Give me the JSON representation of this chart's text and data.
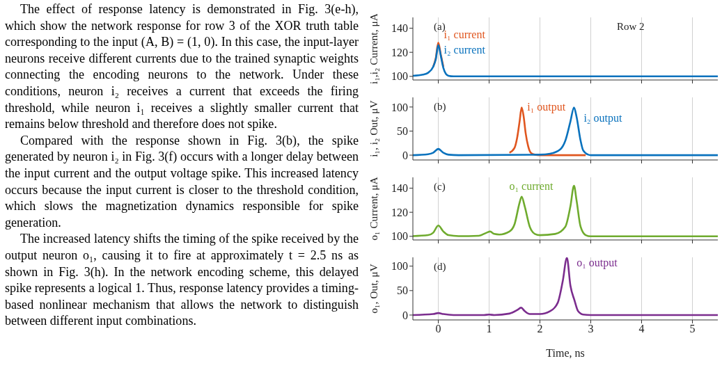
{
  "chart_data": [
    {
      "type": "other",
      "annotations": [
        "The effect of response latency is demonstrated in Fig. 3(e-h), which show the network response for row 3 of the XOR truth table corresponding to the input (A, B) = (1, 0). In this case, the input-layer neurons receive different currents due to the trained synaptic weights connecting the encoding neurons to the network. Under these conditions, neuron i₂ receives a current that exceeds the firing threshold, while neuron i₁ receives a slightly smaller current that remains below threshold and therefore does not spike.",
        "Compared with the response shown in Fig. 3(b), the spike generated by neuron i₂ in Fig. 3(f) occurs with a longer delay between the input current and the output voltage spike. This increased latency occurs because the input current is closer to the threshold condition, which slows the magnetization dynamics responsible for spike generation.",
        "The increased latency shifts the timing of the spike received by the output neuron o₁, causing it to fire at approximately t = 2.5 ns as shown in Fig. 3(h). In the network encoding scheme, this delayed spike represents a logical 1. Thus, response latency provides a timing-based nonlinear mechanism that allows the network to distinguish between different input combinations."
      ]
    },
    {
      "type": "line",
      "ylabel": "i₁,i₂ Current, μA",
      "annotations": [
        "(a)",
        "Row 2"
      ],
      "xlim": [
        -0.5,
        5.5
      ],
      "xticks": [
        0,
        1,
        2,
        3,
        4,
        5
      ],
      "ylim": [
        97,
        149
      ],
      "yticks": [
        100,
        120,
        140
      ],
      "grid": "x",
      "tick_labels": "y",
      "legend": false,
      "series": [
        {
          "name": "i₁ current",
          "color": "#e0561f",
          "x": [
            -0.1,
            -0.05,
            0,
            0.05,
            0.1
          ],
          "values": [
            108,
            115,
            128,
            118,
            108
          ]
        },
        {
          "name": "i₂ current",
          "color": "#0a72bd",
          "x": [
            -0.5,
            -0.3,
            -0.2,
            -0.1,
            -0.05,
            0,
            0.05,
            0.1,
            0.15,
            0.2,
            0.3,
            5.5
          ],
          "values": [
            100.5,
            101.5,
            103,
            108,
            114,
            126,
            117,
            107,
            102,
            100.5,
            100,
            100
          ]
        }
      ]
    },
    {
      "type": "line",
      "ylabel": "i₁, i₂ Out, μV",
      "annotations": [
        "(b)"
      ],
      "xlim": [
        -0.5,
        5.5
      ],
      "xticks": [
        0,
        1,
        2,
        3,
        4,
        5
      ],
      "ylim": [
        -10,
        120
      ],
      "yticks": [
        0,
        50,
        100
      ],
      "grid": "x",
      "tick_labels": "y",
      "legend": false,
      "series": [
        {
          "name": "i₁ output",
          "color": "#e0561f",
          "x": [
            1.4,
            1.5,
            1.55,
            1.6,
            1.64,
            1.68,
            1.72,
            1.77,
            1.82,
            1.9,
            2.0,
            2.9
          ],
          "values": [
            5,
            15,
            35,
            70,
            99,
            80,
            45,
            18,
            5,
            1,
            0,
            0
          ]
        },
        {
          "name": "i₂ output",
          "color": "#0a72bd",
          "x": [
            -0.5,
            -0.2,
            -0.1,
            0,
            0.1,
            0.2,
            0.4,
            2.0,
            2.2,
            2.4,
            2.5,
            2.6,
            2.67,
            2.72,
            2.8,
            2.85,
            2.95,
            3.0,
            5.5
          ],
          "values": [
            0,
            2,
            5,
            13,
            5,
            1,
            0,
            1,
            3,
            12,
            30,
            70,
            99,
            80,
            30,
            10,
            1,
            0,
            0
          ]
        }
      ]
    },
    {
      "type": "line",
      "ylabel": "o₁ Current, μA",
      "annotations": [
        "(c)"
      ],
      "xlim": [
        -0.5,
        5.5
      ],
      "xticks": [
        0,
        1,
        2,
        3,
        4,
        5
      ],
      "ylim": [
        97,
        149
      ],
      "yticks": [
        100,
        120,
        140
      ],
      "grid": "x",
      "tick_labels": "y",
      "legend": false,
      "series": [
        {
          "name": "o₁ current",
          "color": "#6fab2e",
          "x": [
            -0.5,
            -0.2,
            -0.1,
            0,
            0.1,
            0.2,
            0.4,
            0.8,
            0.95,
            1.02,
            1.1,
            1.2,
            1.4,
            1.5,
            1.6,
            1.64,
            1.7,
            1.8,
            1.9,
            2.0,
            2.3,
            2.5,
            2.6,
            2.67,
            2.72,
            2.8,
            2.9,
            3.0,
            5.5
          ],
          "values": [
            100.2,
            101,
            103,
            109,
            104,
            101,
            100.2,
            100.5,
            103,
            104,
            102,
            101.5,
            104,
            110,
            128,
            133,
            125,
            108,
            102,
            101,
            102,
            108,
            125,
            142,
            130,
            108,
            101,
            100,
            100
          ]
        }
      ]
    },
    {
      "type": "line",
      "ylabel": "o₁, Out, μV",
      "xlabel": "Time, ns",
      "annotations": [
        "(d)"
      ],
      "xlim": [
        -0.5,
        5.5
      ],
      "xticks": [
        0,
        1,
        2,
        3,
        4,
        5
      ],
      "ylim": [
        -10,
        118
      ],
      "yticks": [
        0,
        50,
        100
      ],
      "grid": "x",
      "legend": false,
      "series": [
        {
          "name": "o₁ output",
          "color": "#7b2d8e",
          "x": [
            -0.5,
            -0.1,
            0,
            0.1,
            0.3,
            0.9,
            1.0,
            1.1,
            1.4,
            1.55,
            1.63,
            1.7,
            1.8,
            2.0,
            2.2,
            2.35,
            2.45,
            2.53,
            2.6,
            2.68,
            2.75,
            2.85,
            3.0,
            5.5
          ],
          "values": [
            0,
            2,
            4,
            2,
            0,
            0,
            1,
            0,
            3,
            10,
            15,
            8,
            2,
            2,
            8,
            25,
            70,
            117,
            60,
            30,
            8,
            1,
            0,
            0
          ]
        }
      ]
    }
  ]
}
